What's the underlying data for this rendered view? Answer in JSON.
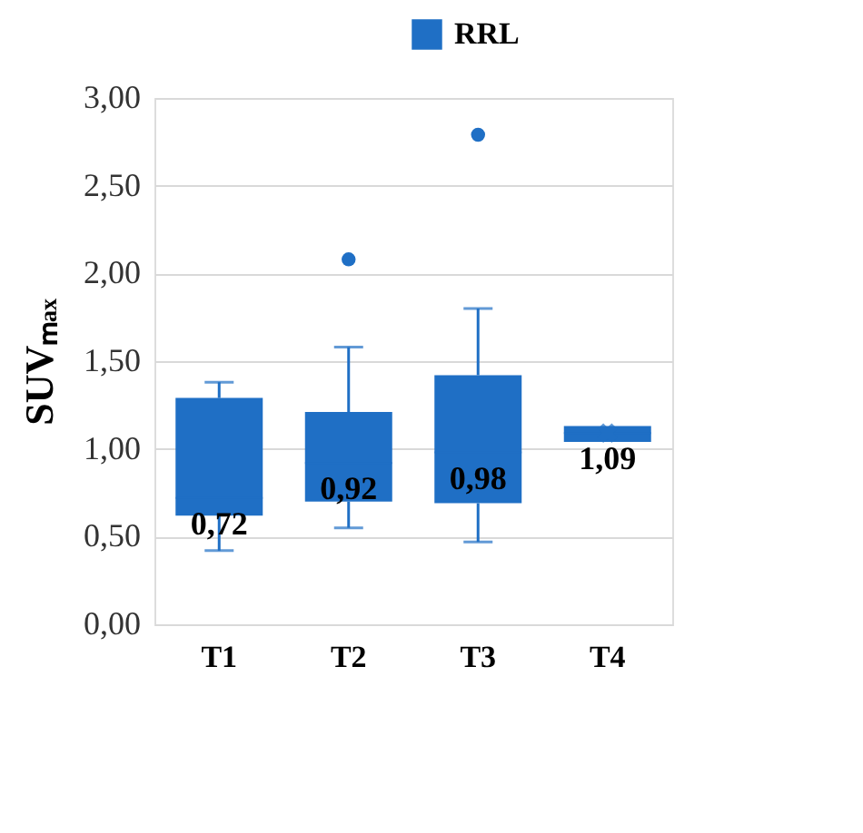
{
  "chart_data": {
    "type": "box",
    "ylabel": "SUVₘₐₓ",
    "categories": [
      "T1",
      "T2",
      "T3",
      "T4"
    ],
    "series": [
      {
        "name": "RRL",
        "color": "#1f6fc5",
        "boxes": [
          {
            "low": 0.42,
            "q1": 0.62,
            "median": 0.72,
            "q3": 1.29,
            "high": 1.38
          },
          {
            "low": 0.55,
            "q1": 0.7,
            "median": 0.92,
            "q3": 1.21,
            "high": 1.58,
            "outliers": [
              2.08
            ]
          },
          {
            "low": 0.47,
            "q1": 0.69,
            "median": 0.98,
            "q3": 1.42,
            "high": 1.8,
            "outliers": [
              2.79
            ]
          },
          {
            "low": 1.04,
            "q1": 1.04,
            "median": 1.09,
            "q3": 1.13,
            "high": 1.13,
            "mean": 1.09
          }
        ]
      }
    ],
    "value_labels": [
      "0,72",
      "0,92",
      "0,98",
      "1,09"
    ],
    "ylim": [
      0,
      3
    ],
    "yticks": [
      {
        "value": 0,
        "label": "0,00"
      },
      {
        "value": 0.5,
        "label": "0,50"
      },
      {
        "value": 1,
        "label": "1,00"
      },
      {
        "value": 1.5,
        "label": "1,50"
      },
      {
        "value": 2,
        "label": "2,00"
      },
      {
        "value": 2.5,
        "label": "2,50"
      },
      {
        "value": 3,
        "label": "3,00"
      }
    ],
    "grid": "y",
    "legend": "top"
  }
}
